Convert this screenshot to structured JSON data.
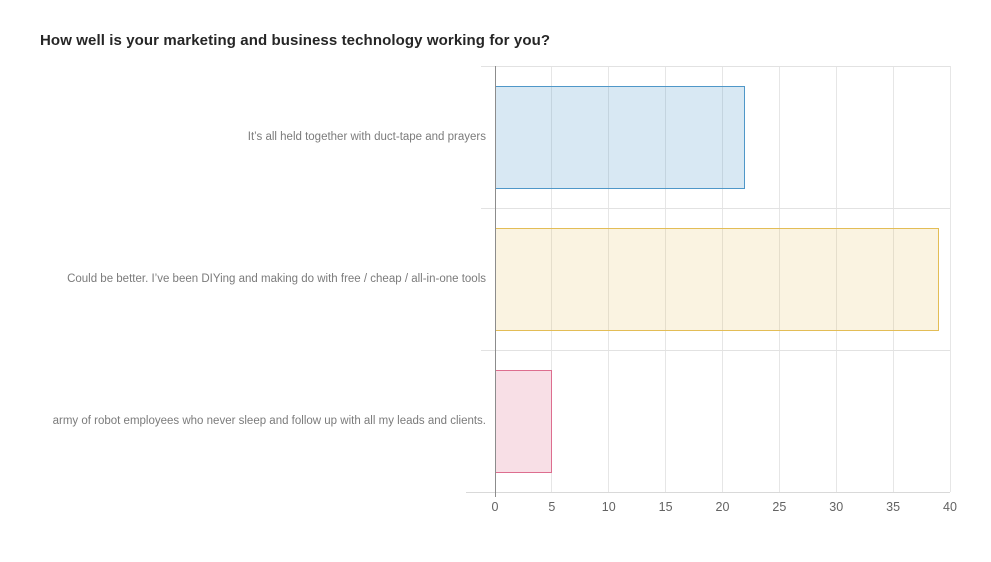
{
  "header": {
    "title": "How well is your marketing and business technology working for you?"
  },
  "chart_data": {
    "type": "bar",
    "orientation": "horizontal",
    "title": "How well is your marketing and business technology working for you?",
    "categories": [
      "It’s all held together with duct-tape and prayers",
      "Could be better. I’ve been DIYing and making do with free / cheap / all-in-one tools",
      "army of robot employees who never sleep and follow up with all my leads and clients."
    ],
    "values": [
      22,
      39,
      5
    ],
    "xlabel": "",
    "ylabel": "",
    "xlim": [
      0,
      40
    ],
    "xticks": [
      0,
      5,
      10,
      15,
      20,
      25,
      30,
      35,
      40
    ],
    "grid": true,
    "legend": false,
    "bar_styles": [
      {
        "fill": "rgba(79,151,200,0.22)",
        "border": "#4f97c8"
      },
      {
        "fill": "rgba(227,189,86,0.18)",
        "border": "#e3bd56"
      },
      {
        "fill": "rgba(221,110,143,0.22)",
        "border": "#dd6e8f"
      }
    ],
    "axis_color": "#8c8c8c",
    "grid_color": "#e6e6e6",
    "tick_label_color": "#636363",
    "category_label_color": "#7b7b7b"
  }
}
